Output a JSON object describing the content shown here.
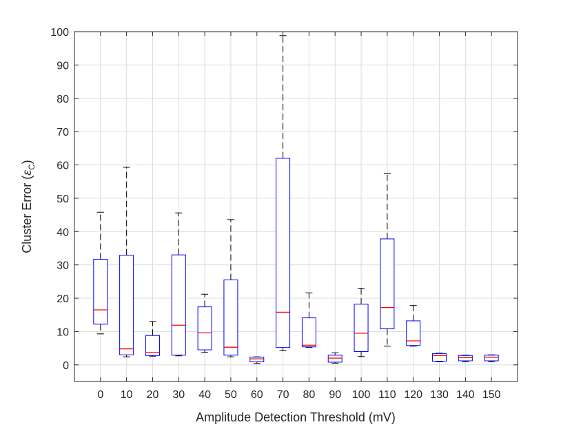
{
  "chart_data": {
    "type": "boxplot",
    "xlabel": "Amplitude Detection Threshold (mV)",
    "ylabel": "Cluster Error (",
    "ylabel_symbol": "ε",
    "ylabel_subscript": "C",
    "ylabel_suffix": ")",
    "ylim": [
      -5,
      100
    ],
    "yticks": [
      0,
      10,
      20,
      30,
      40,
      50,
      60,
      70,
      80,
      90,
      100
    ],
    "grid": true,
    "colors": {
      "box": "#0000ff",
      "median": "#ff0000",
      "whisker": "#000000",
      "grid": "#dcdcdc",
      "axis": "#262626"
    },
    "categories": [
      "0",
      "10",
      "20",
      "30",
      "40",
      "50",
      "60",
      "70",
      "80",
      "90",
      "100",
      "110",
      "120",
      "130",
      "140",
      "150"
    ],
    "boxes": [
      {
        "category": "0",
        "whisker_low": 9.3,
        "q1": 12.2,
        "median": 16.5,
        "q3": 31.7,
        "whisker_high": 45.8
      },
      {
        "category": "10",
        "whisker_low": 2.4,
        "q1": 3.0,
        "median": 4.8,
        "q3": 32.9,
        "whisker_high": 59.3
      },
      {
        "category": "20",
        "whisker_low": 2.6,
        "q1": 2.8,
        "median": 3.7,
        "q3": 8.8,
        "whisker_high": 13.0
      },
      {
        "category": "30",
        "whisker_low": 2.7,
        "q1": 2.9,
        "median": 11.9,
        "q3": 33.0,
        "whisker_high": 45.6
      },
      {
        "category": "40",
        "whisker_low": 3.7,
        "q1": 4.5,
        "median": 9.6,
        "q3": 17.4,
        "whisker_high": 21.2
      },
      {
        "category": "50",
        "whisker_low": 2.4,
        "q1": 2.9,
        "median": 5.3,
        "q3": 25.5,
        "whisker_high": 43.6
      },
      {
        "category": "60",
        "whisker_low": 0.4,
        "q1": 0.9,
        "median": 1.8,
        "q3": 2.3,
        "whisker_high": 2.4
      },
      {
        "category": "70",
        "whisker_low": 4.2,
        "q1": 5.2,
        "median": 15.8,
        "q3": 62.0,
        "whisker_high": 98.8
      },
      {
        "category": "80",
        "whisker_low": 5.2,
        "q1": 5.4,
        "median": 5.9,
        "q3": 14.1,
        "whisker_high": 21.6
      },
      {
        "category": "90",
        "whisker_low": 0.5,
        "q1": 0.8,
        "median": 2.0,
        "q3": 2.9,
        "whisker_high": 3.6
      },
      {
        "category": "100",
        "whisker_low": 2.5,
        "q1": 4.0,
        "median": 9.5,
        "q3": 18.2,
        "whisker_high": 23.0
      },
      {
        "category": "110",
        "whisker_low": 5.6,
        "q1": 10.8,
        "median": 17.2,
        "q3": 37.8,
        "whisker_high": 57.5
      },
      {
        "category": "120",
        "whisker_low": 5.6,
        "q1": 5.8,
        "median": 7.2,
        "q3": 13.2,
        "whisker_high": 17.8
      },
      {
        "category": "130",
        "whisker_low": 0.9,
        "q1": 1.1,
        "median": 2.8,
        "q3": 3.4,
        "whisker_high": 3.5
      },
      {
        "category": "140",
        "whisker_low": 0.9,
        "q1": 1.2,
        "median": 2.2,
        "q3": 2.8,
        "whisker_high": 2.9
      },
      {
        "category": "150",
        "whisker_low": 0.9,
        "q1": 1.2,
        "median": 2.3,
        "q3": 2.9,
        "whisker_high": 3.0
      }
    ]
  }
}
